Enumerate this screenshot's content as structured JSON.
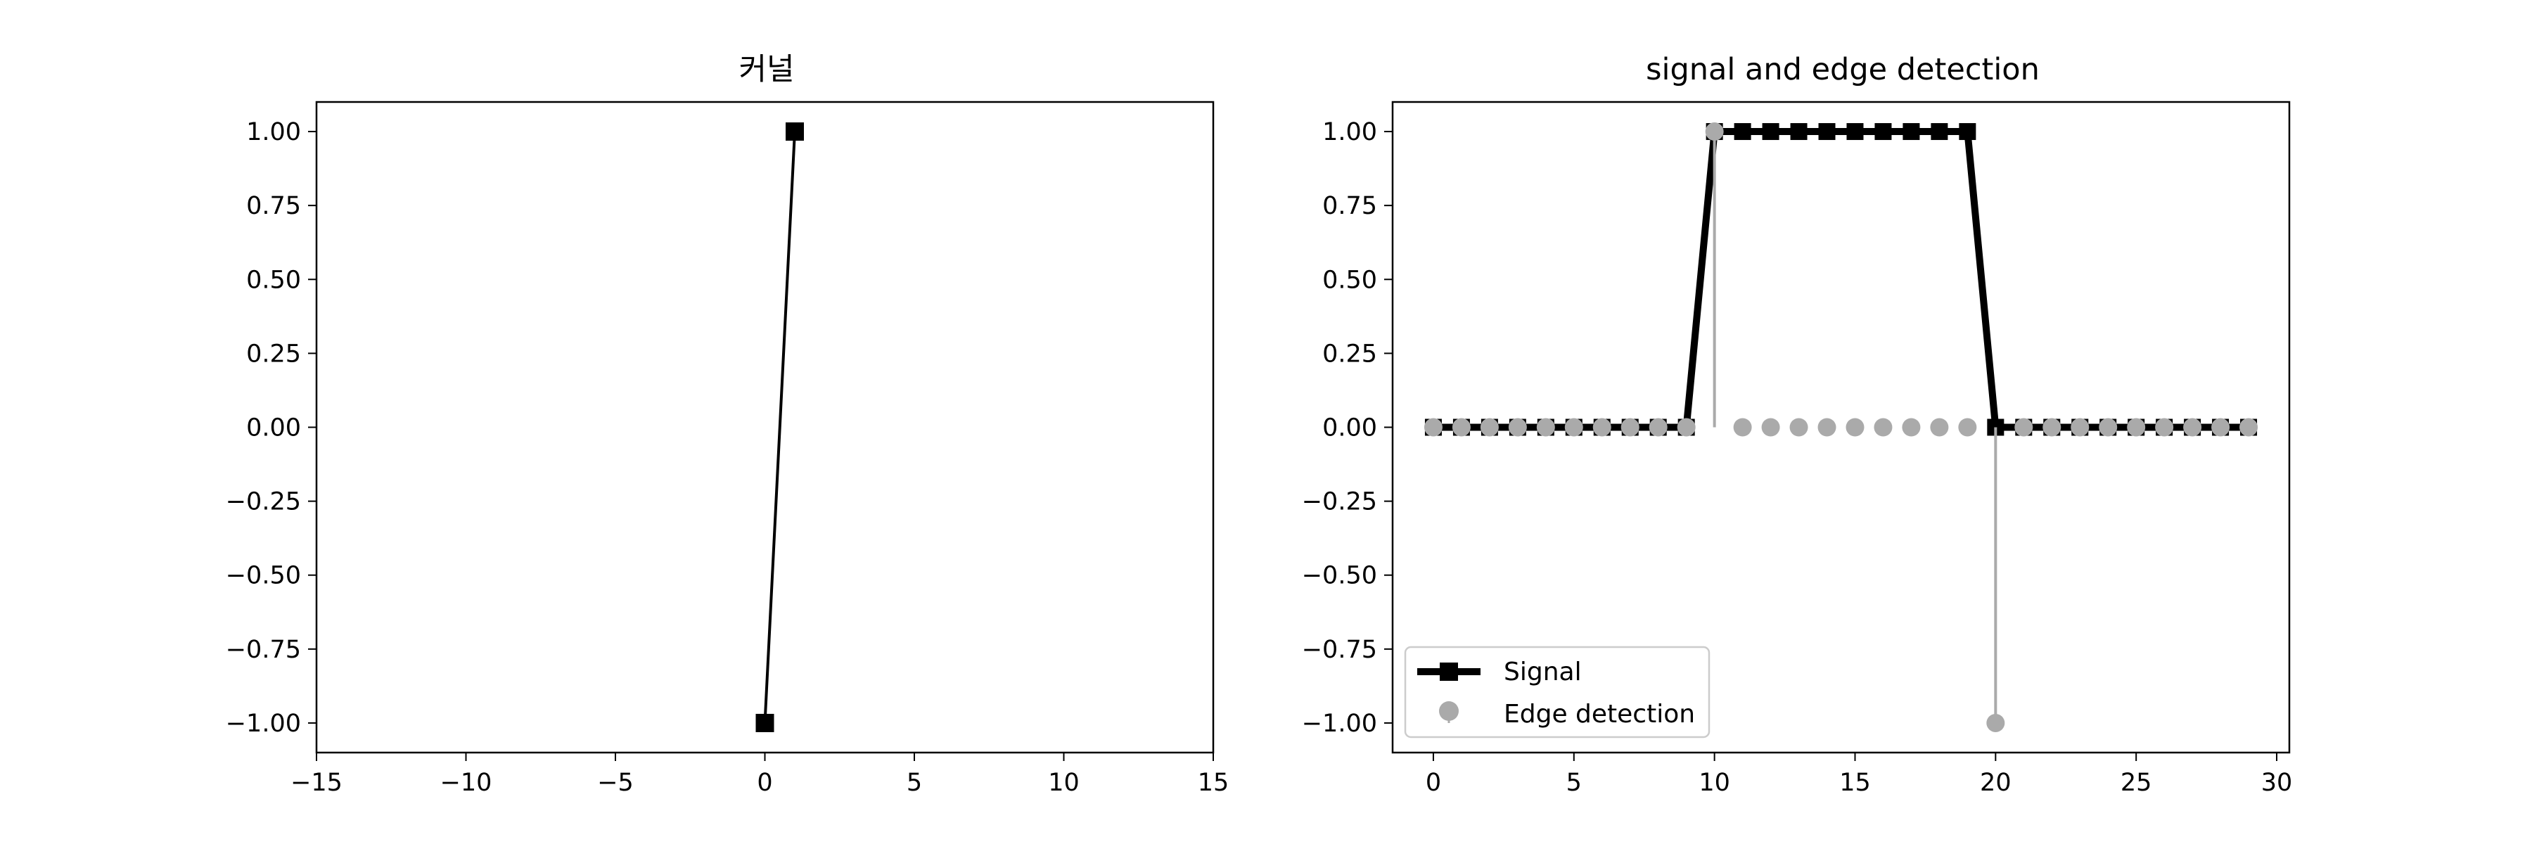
{
  "chart_data": [
    {
      "type": "line",
      "title": "커널",
      "xlabel": "",
      "ylabel": "",
      "xlim": [
        -15,
        15
      ],
      "ylim": [
        -1.1,
        1.1
      ],
      "xticks": [
        -15,
        -10,
        -5,
        0,
        5,
        10,
        15
      ],
      "xtick_labels": [
        "−15",
        "−10",
        "−5",
        "0",
        "5",
        "10",
        "15"
      ],
      "yticks": [
        1.0,
        0.75,
        0.5,
        0.25,
        0.0,
        -0.25,
        -0.5,
        -0.75,
        -1.0
      ],
      "ytick_labels": [
        "1.00",
        "0.75",
        "0.50",
        "0.25",
        "0.00",
        "−0.25",
        "−0.50",
        "−0.75",
        "−1.00"
      ],
      "grid": false,
      "series": [
        {
          "x": [
            0,
            1
          ],
          "y": [
            -1,
            1
          ],
          "color": "#000000",
          "marker": "square"
        }
      ]
    },
    {
      "type": "line",
      "title": "signal and edge detection",
      "xlabel": "",
      "ylabel": "",
      "xlim": [
        -1.45,
        30.45
      ],
      "ylim": [
        -1.1,
        1.1
      ],
      "xticks": [
        0,
        5,
        10,
        15,
        20,
        25,
        30
      ],
      "xtick_labels": [
        "0",
        "5",
        "10",
        "15",
        "20",
        "25",
        "30"
      ],
      "yticks": [
        1.0,
        0.75,
        0.5,
        0.25,
        0.0,
        -0.25,
        -0.5,
        -0.75,
        -1.0
      ],
      "ytick_labels": [
        "1.00",
        "0.75",
        "0.50",
        "0.25",
        "0.00",
        "−0.25",
        "−0.50",
        "−0.75",
        "−1.00"
      ],
      "grid": false,
      "legend_position": "lower-left",
      "series": [
        {
          "name": "Signal",
          "style": "line",
          "color": "#000000",
          "marker": "square",
          "x": [
            0,
            1,
            2,
            3,
            4,
            5,
            6,
            7,
            8,
            9,
            10,
            11,
            12,
            13,
            14,
            15,
            16,
            17,
            18,
            19,
            20,
            21,
            22,
            23,
            24,
            25,
            26,
            27,
            28,
            29
          ],
          "y": [
            0,
            0,
            0,
            0,
            0,
            0,
            0,
            0,
            0,
            0,
            1,
            1,
            1,
            1,
            1,
            1,
            1,
            1,
            1,
            1,
            0,
            0,
            0,
            0,
            0,
            0,
            0,
            0,
            0,
            0
          ]
        },
        {
          "name": "Edge detection",
          "style": "stem",
          "color": "#aaaaaa",
          "marker": "circle",
          "x": [
            0,
            1,
            2,
            3,
            4,
            5,
            6,
            7,
            8,
            9,
            10,
            11,
            12,
            13,
            14,
            15,
            16,
            17,
            18,
            19,
            20,
            21,
            22,
            23,
            24,
            25,
            26,
            27,
            28,
            29
          ],
          "y": [
            0,
            0,
            0,
            0,
            0,
            0,
            0,
            0,
            0,
            0,
            1,
            0,
            0,
            0,
            0,
            0,
            0,
            0,
            0,
            0,
            -1,
            0,
            0,
            0,
            0,
            0,
            0,
            0,
            0,
            0
          ]
        }
      ]
    }
  ]
}
